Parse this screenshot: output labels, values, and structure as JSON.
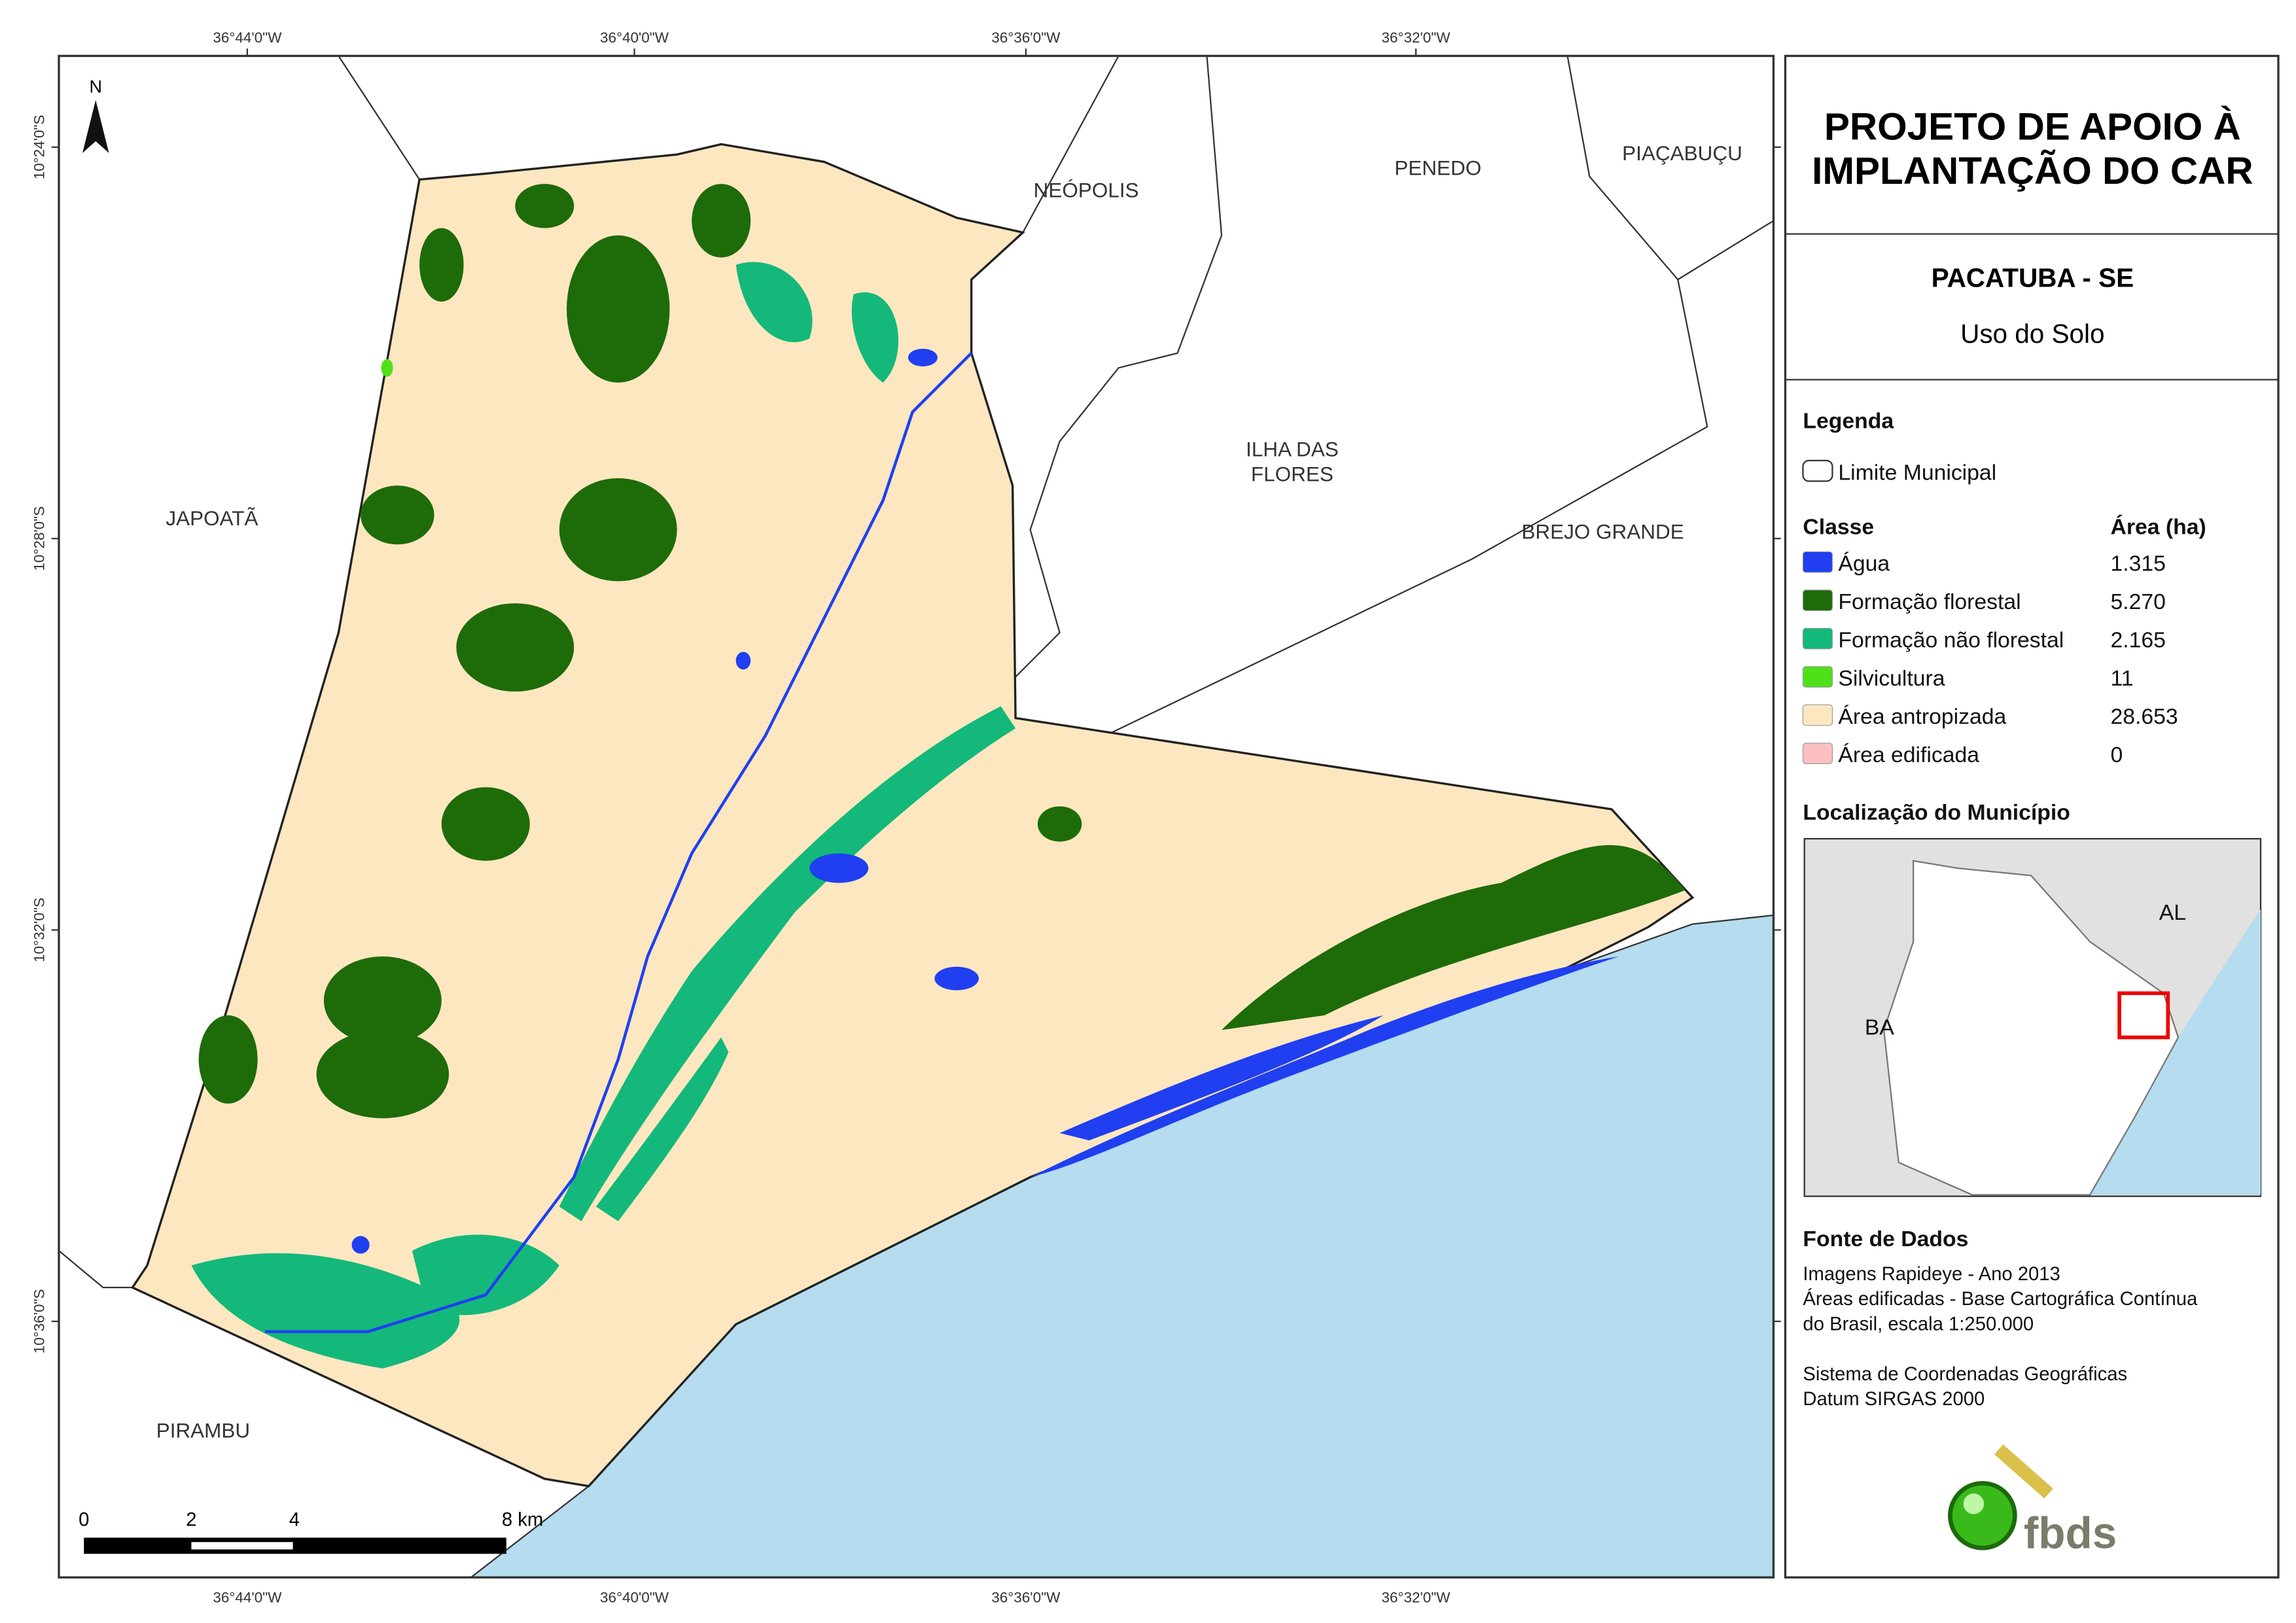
{
  "header": {
    "title_lines": [
      "PROJETO DE APOIO À",
      "IMPLANTAÇÃO DO CAR"
    ]
  },
  "municipality": {
    "name": "PACATUBA - SE",
    "subtitle": "Uso do Solo"
  },
  "legend": {
    "title": "Legenda",
    "boundary": "Limite Municipal",
    "class_header": "Classe",
    "area_header": "Área (ha)",
    "items": [
      {
        "name": "Água",
        "area": "1.315",
        "color": "#1f3ff0"
      },
      {
        "name": "Formação florestal",
        "area": "5.270",
        "color": "#1e6b0a"
      },
      {
        "name": "Formação não florestal",
        "area": "2.165",
        "color": "#14b87a"
      },
      {
        "name": "Silvicultura",
        "area": "11",
        "color": "#4fe01a"
      },
      {
        "name": "Área antropizada",
        "area": "28.653",
        "color": "#fde7c0"
      },
      {
        "name": "Área edificada",
        "area": "0",
        "color": "#fbbfc1"
      }
    ]
  },
  "location": {
    "title": "Localização do Município",
    "labels": [
      "AL",
      "BA"
    ]
  },
  "sources": {
    "title": "Fonte de Dados",
    "data_lines": [
      "Imagens Rapideye - Ano 2013",
      "Áreas edificadas - Base Cartográfica Contínua",
      "do Brasil, escala 1:250.000"
    ],
    "crs_lines": [
      "Sistema de Coordenadas Geográficas",
      "Datum SIRGAS 2000"
    ]
  },
  "logo": "fbds",
  "map": {
    "north": "N",
    "longitudes": [
      "36°44'0\"W",
      "36°40'0\"W",
      "36°36'0\"W",
      "36°32'0\"W"
    ],
    "latitudes": [
      "10°24'0\"S",
      "10°28'0\"S",
      "10°32'0\"S",
      "10°36'0\"S"
    ],
    "places": [
      [
        "NEÓPOLIS"
      ],
      [
        "PENEDO"
      ],
      [
        "PIAÇABUÇU"
      ],
      [
        "ILHA DAS",
        "FLORES"
      ],
      [
        "JAPOATÃ"
      ],
      [
        "BREJO GRANDE"
      ],
      [
        "PIRAMBU"
      ]
    ],
    "scale_labels": [
      "0",
      "2",
      "4",
      "8 km"
    ]
  }
}
